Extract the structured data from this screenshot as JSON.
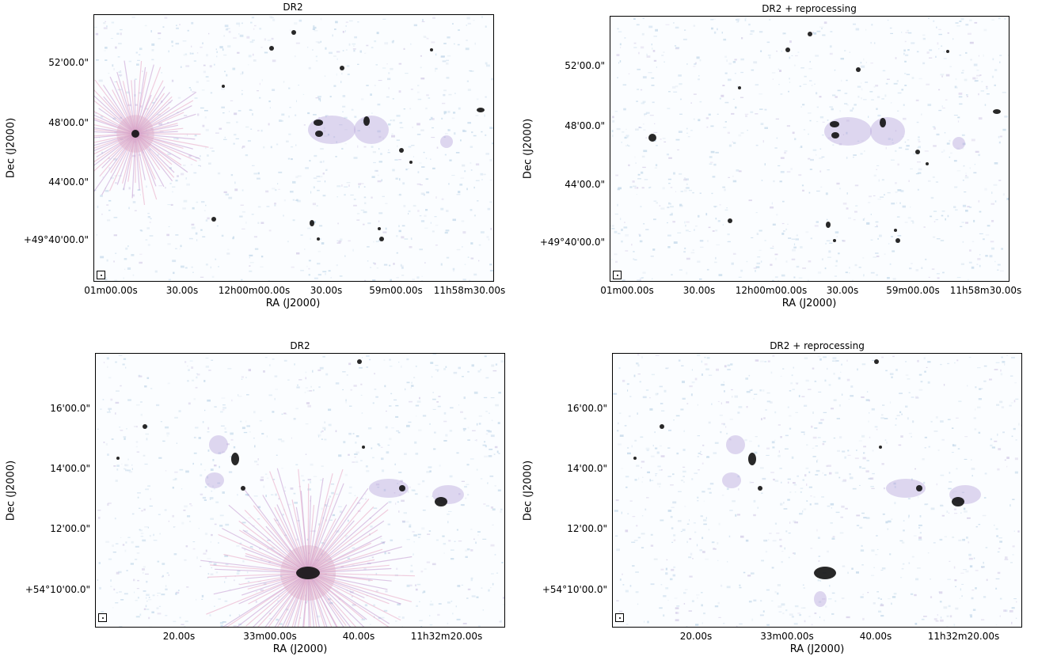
{
  "panels": [
    {
      "title": "DR2",
      "xlabel": "RA (J2000)",
      "ylabel": "Dec (J2000)",
      "xticks": [
        "01m00.00s",
        "30.00s",
        "12h00m00.00s",
        "30.00s",
        "59m00.00s",
        "11h58m30.00s"
      ],
      "yticks": [
        "52'00.0\"",
        "48'00.0\"",
        "44'00.0\"",
        "+49°40'00.0\""
      ],
      "bright_source_artifacts": true
    },
    {
      "title": "DR2 + reprocessing",
      "xlabel": "RA (J2000)",
      "ylabel": "Dec (J2000)",
      "xticks": [
        "01m00.00s",
        "30.00s",
        "12h00m00.00s",
        "30.00s",
        "59m00.00s",
        "11h58m30.00s"
      ],
      "yticks": [
        "52'00.0\"",
        "48'00.0\"",
        "44'00.0\"",
        "+49°40'00.0\""
      ],
      "bright_source_artifacts": false
    },
    {
      "title": "DR2",
      "xlabel": "RA (J2000)",
      "ylabel": "Dec (J2000)",
      "xticks": [
        "20.00s",
        "33m00.00s",
        "40.00s",
        "11h32m20.00s"
      ],
      "yticks": [
        "16'00.0\"",
        "14'00.0\"",
        "12'00.0\"",
        "+54°10'00.0\""
      ],
      "bright_source_artifacts": true
    },
    {
      "title": "DR2 + reprocessing",
      "xlabel": "RA (J2000)",
      "ylabel": "Dec (J2000)",
      "xticks": [
        "20.00s",
        "33m00.00s",
        "40.00s",
        "11h32m20.00s"
      ],
      "yticks": [
        "16'00.0\"",
        "14'00.0\"",
        "12'00.0\"",
        "+54°10'00.0\""
      ],
      "bright_source_artifacts": false
    }
  ]
}
